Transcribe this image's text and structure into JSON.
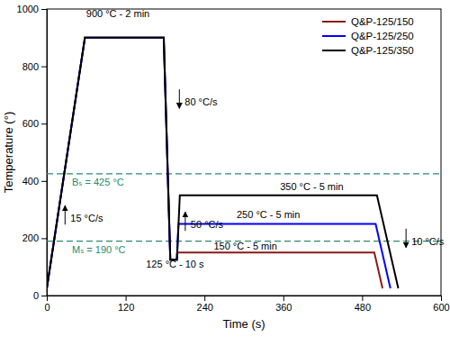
{
  "chart_data": {
    "type": "line",
    "x_label": "Time (s)",
    "y_label": "Temperature (°)",
    "xlim": [
      0,
      600
    ],
    "xticks": [
      0,
      120,
      240,
      360,
      480,
      600
    ],
    "ylim": [
      0,
      1000
    ],
    "yticks": [
      0,
      200,
      400,
      600,
      800,
      1000
    ],
    "grid": false,
    "legend": "upper right",
    "series": [
      {
        "name": "Q&P-125/150",
        "color": "#8b1a1a",
        "x": [
          0,
          58,
          178,
          188,
          198,
          198.5,
          498.5,
          511
        ],
        "values": [
          25,
          900,
          900,
          125,
          125,
          150,
          150,
          25
        ]
      },
      {
        "name": "Q&P-125/250",
        "color": "#0000ff",
        "x": [
          0,
          58,
          178,
          188,
          198,
          200.5,
          500.5,
          523
        ],
        "values": [
          25,
          900,
          900,
          125,
          125,
          250,
          250,
          25
        ]
      },
      {
        "name": "Q&P-125/350",
        "color": "#000000",
        "x": [
          0,
          58,
          178,
          188,
          198,
          202.5,
          502.5,
          535
        ],
        "values": [
          25,
          900,
          900,
          125,
          125,
          350,
          350,
          25
        ]
      }
    ],
    "reference_lines": [
      {
        "label": "Bₛ = 425 °C",
        "value": 425,
        "color": "#2a8a6a",
        "line_style": "dashed"
      },
      {
        "label": "Mₛ = 190 °C",
        "value": 190,
        "color": "#2a8a6a",
        "line_style": "dashed"
      }
    ],
    "annotations": [
      {
        "text": "900 °C - 2 min",
        "x": 60,
        "y": 971
      },
      {
        "text": "80 °C/s",
        "x": 210,
        "y": 663
      },
      {
        "text": "350 °C - 5 min",
        "x": 355,
        "y": 369
      },
      {
        "text": "250 °C - 5 min",
        "x": 289,
        "y": 269
      },
      {
        "text": "150 °C - 5 min",
        "x": 254,
        "y": 160
      },
      {
        "text": "125 °C - 10 s",
        "x": 151,
        "y": 97
      },
      {
        "text": "50 °C/s",
        "x": 219,
        "y": 235
      },
      {
        "text": "15 °C/s",
        "x": 36,
        "y": 257
      },
      {
        "text": "10 °C/s",
        "x": 555,
        "y": 177
      }
    ]
  }
}
